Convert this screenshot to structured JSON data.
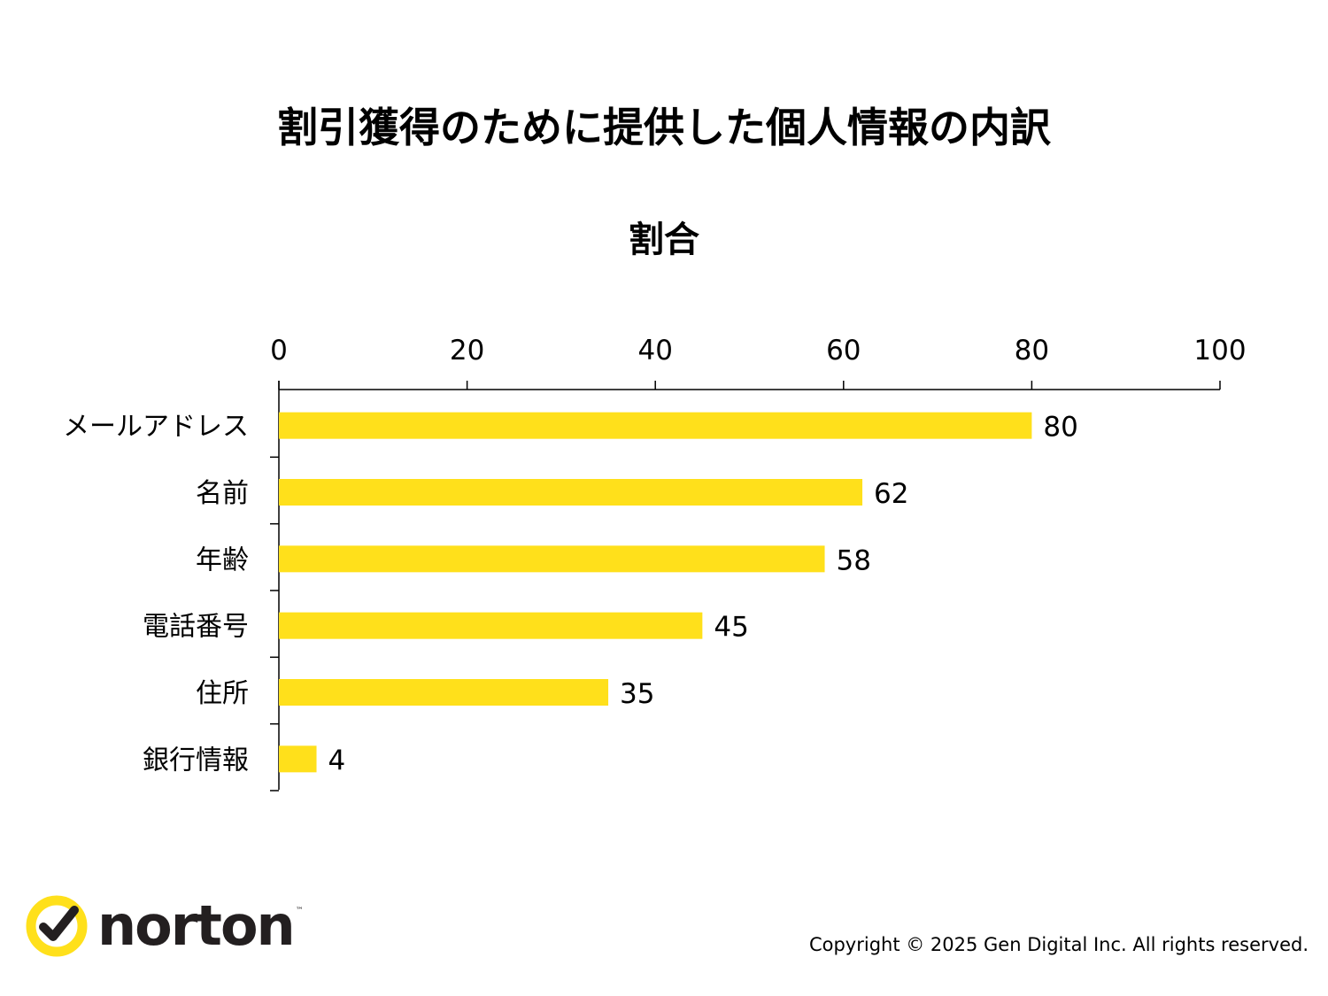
{
  "title": "割引獲得のために提供した個人情報の内訳",
  "chart_data": {
    "type": "bar",
    "orientation": "horizontal",
    "subtitle": "割合",
    "categories": [
      "メールアドレス",
      "名前",
      "年齢",
      "電話番号",
      "住所",
      "銀行情報"
    ],
    "values": [
      80,
      62,
      58,
      45,
      35,
      4
    ],
    "xlim": [
      0,
      100
    ],
    "xticks": [
      0,
      20,
      40,
      60,
      80,
      100
    ],
    "xaxis_position": "top",
    "bar_color": "#ffe01b",
    "data_labels": true,
    "grid": false,
    "legend": "none"
  },
  "logo": {
    "brand": "norton",
    "tm": "™",
    "icon": "norton-checkmark-icon",
    "accent_color": "#ffe01b"
  },
  "copyright": "Copyright © 2025 Gen Digital Inc. All rights reserved."
}
